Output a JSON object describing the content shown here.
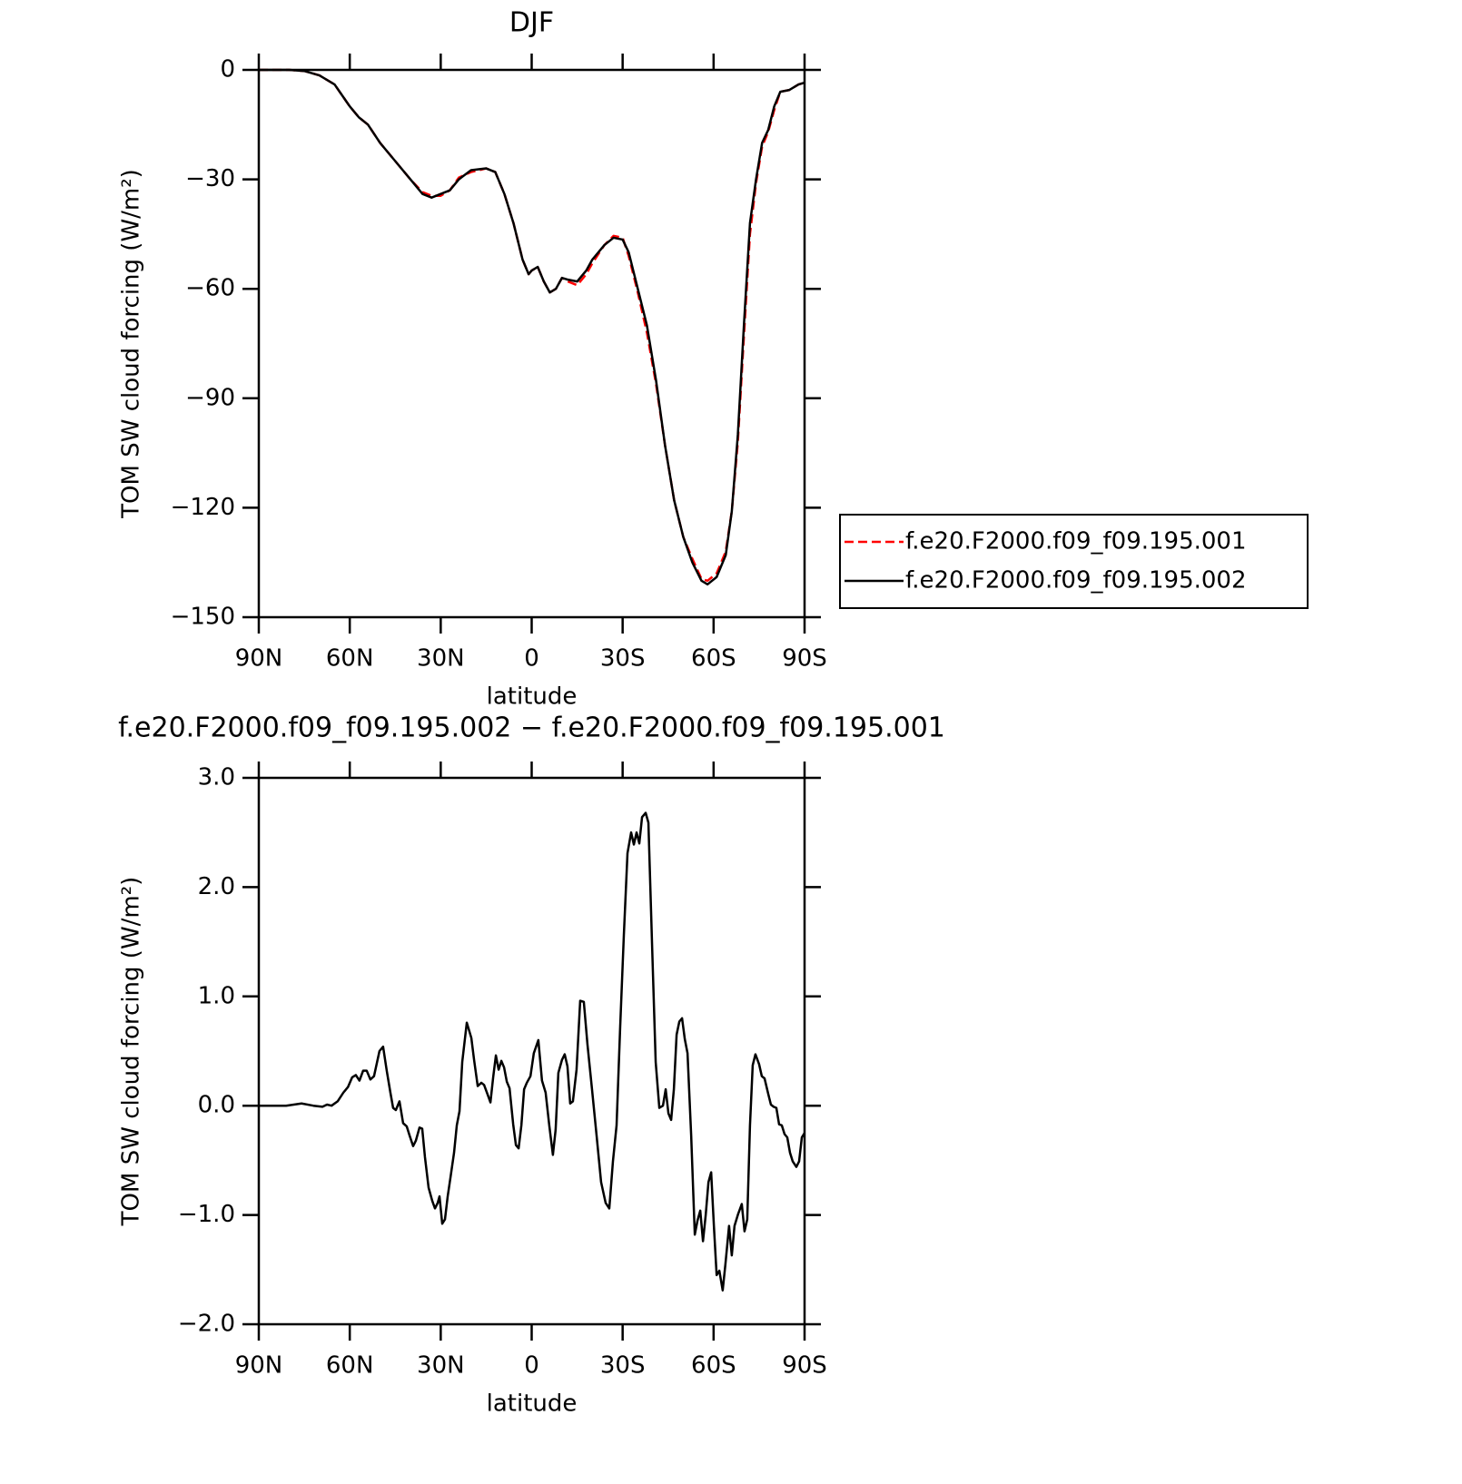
{
  "chart_data": [
    {
      "type": "line",
      "title": "DJF",
      "xlabel": "latitude",
      "ylabel": "TOM SW cloud forcing (W/m²)",
      "x": [
        90,
        85,
        80,
        75,
        70,
        65,
        60,
        57,
        54,
        50,
        45,
        40,
        36,
        33,
        30,
        27,
        24,
        20,
        15,
        12,
        9,
        6,
        3,
        1,
        0,
        -2,
        -4,
        -6,
        -8,
        -10,
        -12,
        -15,
        -18,
        -20,
        -24,
        -27,
        -30,
        -32,
        -35,
        -38,
        -41,
        -44,
        -47,
        -50,
        -53,
        -56,
        -58,
        -61,
        -64,
        -66,
        -68,
        -70,
        -72,
        -74,
        -76,
        -78,
        -80,
        -82,
        -85,
        -88,
        -90
      ],
      "series": [
        {
          "name": "f.e20.F2000.f09_f09.195.001",
          "color": "#ff0000",
          "dashed": true,
          "values": [
            0,
            0,
            0,
            -0.3,
            -1.5,
            -4,
            -10,
            -13,
            -15,
            -20,
            -25,
            -30,
            -33.5,
            -34.5,
            -34.5,
            -33,
            -29.5,
            -28,
            -27,
            -28,
            -34,
            -42,
            -52,
            -56,
            -55,
            -54,
            -58,
            -61,
            -60,
            -57,
            -58,
            -59,
            -56,
            -53,
            -48,
            -45.5,
            -46,
            -51,
            -61,
            -72,
            -86,
            -103,
            -118,
            -128,
            -134,
            -139.5,
            -140,
            -138,
            -132,
            -121,
            -102,
            -73,
            -45,
            -31,
            -21,
            -17,
            -11,
            -6,
            -5.5,
            -4,
            -3.5
          ]
        },
        {
          "name": "f.e20.F2000.f09_f09.195.002",
          "color": "#000000",
          "dashed": false,
          "values": [
            0,
            0,
            0,
            -0.3,
            -1.5,
            -4,
            -10,
            -13,
            -15,
            -20,
            -25,
            -30,
            -34,
            -35,
            -34,
            -33,
            -30,
            -27.5,
            -27,
            -28,
            -34,
            -42,
            -52,
            -56,
            -55,
            -54,
            -58,
            -61,
            -60,
            -57,
            -57.5,
            -58,
            -55,
            -52,
            -48,
            -46,
            -46.5,
            -50,
            -60,
            -70,
            -85,
            -103,
            -118,
            -128,
            -135,
            -140,
            -141,
            -139,
            -133,
            -121,
            -100,
            -70,
            -42,
            -30,
            -20,
            -16.5,
            -10,
            -6,
            -5.5,
            -4,
            -3.5
          ]
        }
      ],
      "xlim": [
        90,
        -90
      ],
      "xticks": [
        {
          "value": 90,
          "label": "90N"
        },
        {
          "value": 60,
          "label": "60N"
        },
        {
          "value": 30,
          "label": "30N"
        },
        0,
        {
          "value": -30,
          "label": "30S"
        },
        {
          "value": -60,
          "label": "60S"
        },
        {
          "value": -90,
          "label": "90S"
        }
      ],
      "ylim": [
        -150,
        0
      ],
      "yticks": [
        0,
        {
          "value": -30,
          "label": "−30"
        },
        {
          "value": -60,
          "label": "−60"
        },
        {
          "value": -90,
          "label": "−90"
        },
        {
          "value": -120,
          "label": "−120"
        },
        {
          "value": -150,
          "label": "−150"
        }
      ],
      "legend": "right"
    },
    {
      "type": "line",
      "title": "f.e20.F2000.f09_f09.195.002 − f.e20.F2000.f09_f09.195.001",
      "xlabel": "latitude",
      "ylabel": "TOM SW cloud forcing (W/m²)",
      "color": "#000000",
      "x": [
        90,
        81,
        75.9,
        72,
        69,
        67.5,
        66,
        64,
        62.1,
        60.6,
        59.2,
        58,
        56.8,
        55.6,
        54.4,
        53.2,
        52,
        50.2,
        49,
        47.8,
        46.6,
        45.7,
        44.8,
        43.6,
        42.4,
        41.2,
        40.3,
        39.1,
        38.2,
        37,
        36.1,
        35.2,
        34,
        32.8,
        31.9,
        31,
        30.4,
        29.5,
        28.6,
        27.7,
        26.8,
        25.6,
        24.7,
        23.8,
        22.9,
        21.4,
        19.9,
        19,
        17.8,
        16.6,
        15.7,
        14.5,
        13.6,
        12.7,
        11.8,
        10.9,
        10,
        9.1,
        8.2,
        7.3,
        6.1,
        5.2,
        4.3,
        3.4,
        2.5,
        1.6,
        0.4,
        -0.7,
        -2.2,
        -3.4,
        -4.6,
        -5.8,
        -7,
        -7.9,
        -8.8,
        -10,
        -10.9,
        -11.8,
        -12.7,
        -13.6,
        -14.8,
        -16,
        -17.2,
        -18.4,
        -19.9,
        -21.4,
        -22.9,
        -24.4,
        -25.6,
        -26.8,
        -28,
        -29.2,
        -30.4,
        -31.6,
        -32.8,
        -33.7,
        -34.6,
        -35.5,
        -36.4,
        -37.6,
        -38.5,
        -39.7,
        -40.9,
        -42.1,
        -43.3,
        -44.2,
        -45.1,
        -46,
        -46.9,
        -47.8,
        -48.7,
        -49.6,
        -50.5,
        -51.4,
        -52.6,
        -53.8,
        -54.7,
        -55.6,
        -56.5,
        -57.4,
        -58.3,
        -59.2,
        -60.1,
        -61,
        -61.9,
        -63,
        -63.9,
        -65.1,
        -66,
        -66.9,
        -68.1,
        -69.3,
        -70.2,
        -71.1,
        -72,
        -72.9,
        -73.8,
        -75,
        -75.9,
        -76.8,
        -78,
        -78.9,
        -79.8,
        -80.7,
        -81.6,
        -82.5,
        -83.4,
        -84.3,
        -85.2,
        -86.1,
        -87.3,
        -88.2,
        -89.1,
        -90
      ],
      "values": [
        0,
        0,
        0.02,
        0,
        -0.01,
        0.01,
        0,
        0.04,
        0.12,
        0.17,
        0.26,
        0.28,
        0.23,
        0.32,
        0.32,
        0.24,
        0.27,
        0.5,
        0.54,
        0.32,
        0.12,
        -0.02,
        -0.04,
        0.04,
        -0.16,
        -0.19,
        -0.27,
        -0.37,
        -0.32,
        -0.2,
        -0.21,
        -0.47,
        -0.75,
        -0.87,
        -0.94,
        -0.89,
        -0.83,
        -1.08,
        -1.04,
        -0.83,
        -0.66,
        -0.43,
        -0.18,
        -0.05,
        0.4,
        0.76,
        0.62,
        0.42,
        0.18,
        0.21,
        0.19,
        0.1,
        0.03,
        0.26,
        0.46,
        0.33,
        0.41,
        0.35,
        0.22,
        0.16,
        -0.17,
        -0.36,
        -0.39,
        -0.18,
        0.15,
        0.21,
        0.27,
        0.48,
        0.6,
        0.23,
        0.12,
        -0.18,
        -0.45,
        -0.22,
        0.3,
        0.42,
        0.47,
        0.36,
        0.02,
        0.04,
        0.33,
        0.96,
        0.95,
        0.56,
        0.15,
        -0.27,
        -0.7,
        -0.89,
        -0.94,
        -0.51,
        -0.18,
        0.73,
        1.56,
        2.31,
        2.5,
        2.39,
        2.5,
        2.4,
        2.64,
        2.68,
        2.59,
        1.48,
        0.4,
        -0.02,
        0,
        0.15,
        -0.07,
        -0.13,
        0.15,
        0.65,
        0.77,
        0.8,
        0.61,
        0.48,
        -0.27,
        -1.18,
        -1.05,
        -0.96,
        -1.24,
        -1.0,
        -0.7,
        -0.61,
        -1.1,
        -1.55,
        -1.51,
        -1.69,
        -1.45,
        -1.1,
        -1.37,
        -1.1,
        -0.99,
        -0.9,
        -1.15,
        -1.04,
        -0.18,
        0.37,
        0.47,
        0.38,
        0.27,
        0.25,
        0.11,
        0.01,
        -0.01,
        -0.02,
        -0.17,
        -0.18,
        -0.26,
        -0.29,
        -0.43,
        -0.51,
        -0.56,
        -0.51,
        -0.29,
        -0.25
      ],
      "xlim": [
        90,
        -90
      ],
      "xticks": [
        {
          "value": 90,
          "label": "90N"
        },
        {
          "value": 60,
          "label": "60N"
        },
        {
          "value": 30,
          "label": "30N"
        },
        0,
        {
          "value": -30,
          "label": "30S"
        },
        {
          "value": -60,
          "label": "60S"
        },
        {
          "value": -90,
          "label": "90S"
        }
      ],
      "ylim": [
        -2,
        3
      ],
      "yticks": [
        {
          "value": 3,
          "label": "3.0"
        },
        {
          "value": 2,
          "label": "2.0"
        },
        {
          "value": 1,
          "label": "1.0"
        },
        {
          "value": 0,
          "label": "0.0"
        },
        {
          "value": -1,
          "label": "−1.0"
        },
        {
          "value": -2,
          "label": "−2.0"
        }
      ]
    }
  ]
}
